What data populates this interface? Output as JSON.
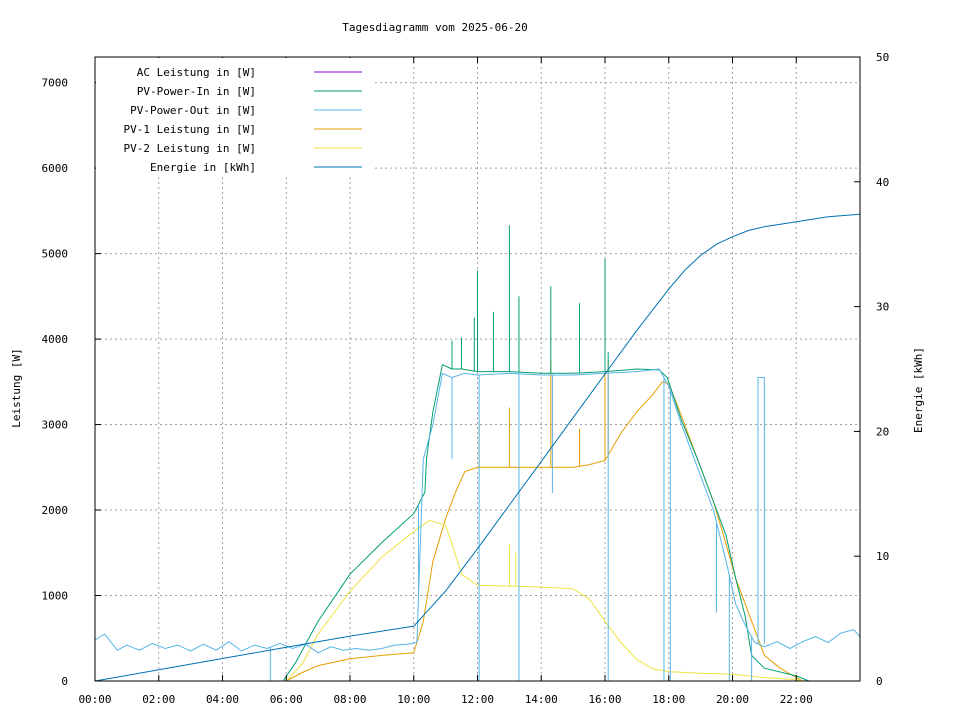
{
  "chart_data": {
    "type": "line",
    "title": "Tagesdiagramm vom 2025-06-20",
    "xlabel": "",
    "ylabel": "Leistung [W]",
    "y2label": "Energie [kWh]",
    "xlim": [
      0,
      24
    ],
    "ylim": [
      0,
      7300
    ],
    "y2lim": [
      0,
      50
    ],
    "x_ticks": [
      0,
      2,
      4,
      6,
      8,
      10,
      12,
      14,
      16,
      18,
      20,
      22
    ],
    "x_tick_labels": [
      "00:00",
      "02:00",
      "04:00",
      "06:00",
      "08:00",
      "10:00",
      "12:00",
      "14:00",
      "16:00",
      "18:00",
      "20:00",
      "22:00"
    ],
    "y_ticks": [
      0,
      1000,
      2000,
      3000,
      4000,
      5000,
      6000,
      7000
    ],
    "y2_ticks": [
      0,
      10,
      20,
      30,
      40,
      50
    ],
    "grid": true,
    "legend_position": "top-left",
    "series": [
      {
        "name": "AC Leistung in [W]",
        "color": "#9400d3",
        "axis": "y",
        "x": [],
        "values": []
      },
      {
        "name": "PV-Power-In in [W]",
        "color": "#009e73",
        "axis": "y",
        "x": [
          0,
          5.9,
          6.3,
          7.0,
          8.0,
          9.0,
          10.0,
          10.35,
          10.4,
          10.6,
          10.9,
          11.2,
          11.5,
          12.0,
          13.0,
          14.0,
          15.0,
          16.0,
          17.0,
          17.7,
          17.95,
          18.4,
          18.9,
          19.4,
          19.8,
          20.1,
          20.4,
          20.6,
          21.0,
          22.0,
          22.4
        ],
        "values": [
          0,
          0,
          220,
          700,
          1250,
          1620,
          1960,
          2210,
          2600,
          3150,
          3700,
          3650,
          3650,
          3620,
          3620,
          3600,
          3600,
          3620,
          3650,
          3640,
          3550,
          3050,
          2600,
          2100,
          1700,
          1200,
          750,
          300,
          150,
          60,
          0
        ],
        "spikes": [
          [
            11.2,
            3980
          ],
          [
            11.5,
            4020
          ],
          [
            11.9,
            4250
          ],
          [
            12.0,
            4800
          ],
          [
            12.5,
            4320
          ],
          [
            13.0,
            5330
          ],
          [
            13.3,
            4500
          ],
          [
            14.3,
            4620
          ],
          [
            15.2,
            4420
          ],
          [
            16.0,
            4940
          ],
          [
            16.1,
            3850
          ]
        ]
      },
      {
        "name": "PV-Power-Out in [W]",
        "color": "#56b4e9",
        "axis": "y",
        "x": [
          0,
          0.3,
          0.7,
          1.0,
          1.4,
          1.8,
          2.2,
          2.6,
          3.0,
          3.4,
          3.8,
          4.2,
          4.6,
          5.0,
          5.4,
          5.8,
          6.2,
          6.6,
          7.0,
          7.4,
          7.8,
          8.2,
          8.6,
          9.0,
          9.4,
          9.8,
          10.1,
          10.3,
          10.6,
          10.9,
          11.2,
          11.6,
          12.0,
          13.0,
          14.0,
          15.0,
          16.0,
          17.0,
          17.7,
          18.0,
          18.4,
          18.9,
          19.4,
          19.8,
          20.1,
          20.4,
          20.7,
          21.0,
          21.4,
          21.8,
          22.2,
          22.6,
          23.0,
          23.4,
          23.8,
          24.0
        ],
        "values": [
          480,
          550,
          360,
          420,
          360,
          440,
          380,
          420,
          350,
          430,
          360,
          460,
          350,
          420,
          380,
          440,
          380,
          430,
          330,
          400,
          360,
          380,
          360,
          380,
          420,
          430,
          450,
          2600,
          3000,
          3600,
          3550,
          3600,
          3580,
          3600,
          3580,
          3580,
          3600,
          3620,
          3650,
          3450,
          3000,
          2500,
          2000,
          1400,
          900,
          650,
          450,
          400,
          460,
          380,
          460,
          520,
          450,
          560,
          600,
          520
        ],
        "dropouts": [
          [
            5.5,
            0
          ],
          [
            10.15,
            2050
          ],
          [
            11.2,
            2600
          ],
          [
            12.05,
            0
          ],
          [
            13.3,
            0
          ],
          [
            14.35,
            2200
          ],
          [
            16.1,
            0
          ],
          [
            17.85,
            0
          ],
          [
            18.05,
            0
          ],
          [
            19.5,
            800
          ],
          [
            19.9,
            0
          ],
          [
            20.6,
            0
          ]
        ],
        "spike_up": [
          [
            20.8,
            3550
          ]
        ]
      },
      {
        "name": "PV-1 Leistung in [W]",
        "color": "#e69f00",
        "axis": "y",
        "x": [
          0,
          6.0,
          6.5,
          7.0,
          8.0,
          9.0,
          10.0,
          10.3,
          10.6,
          11.0,
          11.3,
          11.6,
          12.0,
          13.0,
          14.0,
          15.0,
          15.5,
          16.0,
          16.5,
          17.0,
          17.5,
          17.8,
          18.0,
          18.4,
          18.9,
          19.4,
          19.8,
          20.1,
          20.4,
          20.7,
          21.0,
          21.5,
          22.0,
          22.2
        ],
        "values": [
          0,
          0,
          100,
          180,
          260,
          300,
          330,
          700,
          1400,
          1900,
          2200,
          2450,
          2500,
          2500,
          2500,
          2500,
          2530,
          2580,
          2900,
          3150,
          3350,
          3500,
          3480,
          3100,
          2600,
          2100,
          1600,
          1200,
          900,
          600,
          300,
          150,
          40,
          0
        ],
        "spikes": [
          [
            12.05,
            3050
          ],
          [
            13.0,
            3200
          ],
          [
            14.3,
            3750
          ],
          [
            15.2,
            2950
          ],
          [
            16.0,
            4200
          ],
          [
            16.1,
            3750
          ]
        ]
      },
      {
        "name": "PV-2 Leistung in [W]",
        "color": "#f0e442",
        "axis": "y",
        "x": [
          0,
          6.0,
          6.5,
          7.0,
          8.0,
          9.0,
          10.0,
          10.5,
          11.0,
          11.2,
          11.5,
          12.0,
          13.0,
          14.0,
          15.0,
          15.5,
          16.0,
          16.5,
          17.0,
          17.5,
          18.0,
          19.0,
          20.0,
          20.5,
          21.0,
          22.0,
          22.3
        ],
        "values": [
          0,
          0,
          200,
          550,
          1050,
          1450,
          1750,
          1880,
          1820,
          1600,
          1250,
          1120,
          1110,
          1100,
          1080,
          960,
          700,
          450,
          250,
          140,
          110,
          90,
          80,
          60,
          40,
          15,
          0
        ],
        "spikes": [
          [
            12.05,
            1400
          ],
          [
            13.0,
            1600
          ],
          [
            13.2,
            1500
          ]
        ]
      },
      {
        "name": "Energie in [kWh]",
        "color": "#0072b2",
        "axis": "y2",
        "x": [
          0,
          2,
          4,
          6,
          8,
          10,
          10.5,
          11,
          12,
          13,
          14,
          15,
          16,
          17,
          18,
          18.5,
          19,
          19.5,
          20,
          20.5,
          21,
          22,
          23,
          24
        ],
        "values": [
          0,
          0.9,
          1.8,
          2.7,
          3.6,
          4.4,
          5.8,
          7.2,
          10.6,
          14.1,
          17.6,
          21.1,
          24.6,
          28.1,
          31.4,
          32.9,
          34.1,
          35.0,
          35.6,
          36.1,
          36.4,
          36.8,
          37.2,
          37.4
        ]
      }
    ]
  }
}
